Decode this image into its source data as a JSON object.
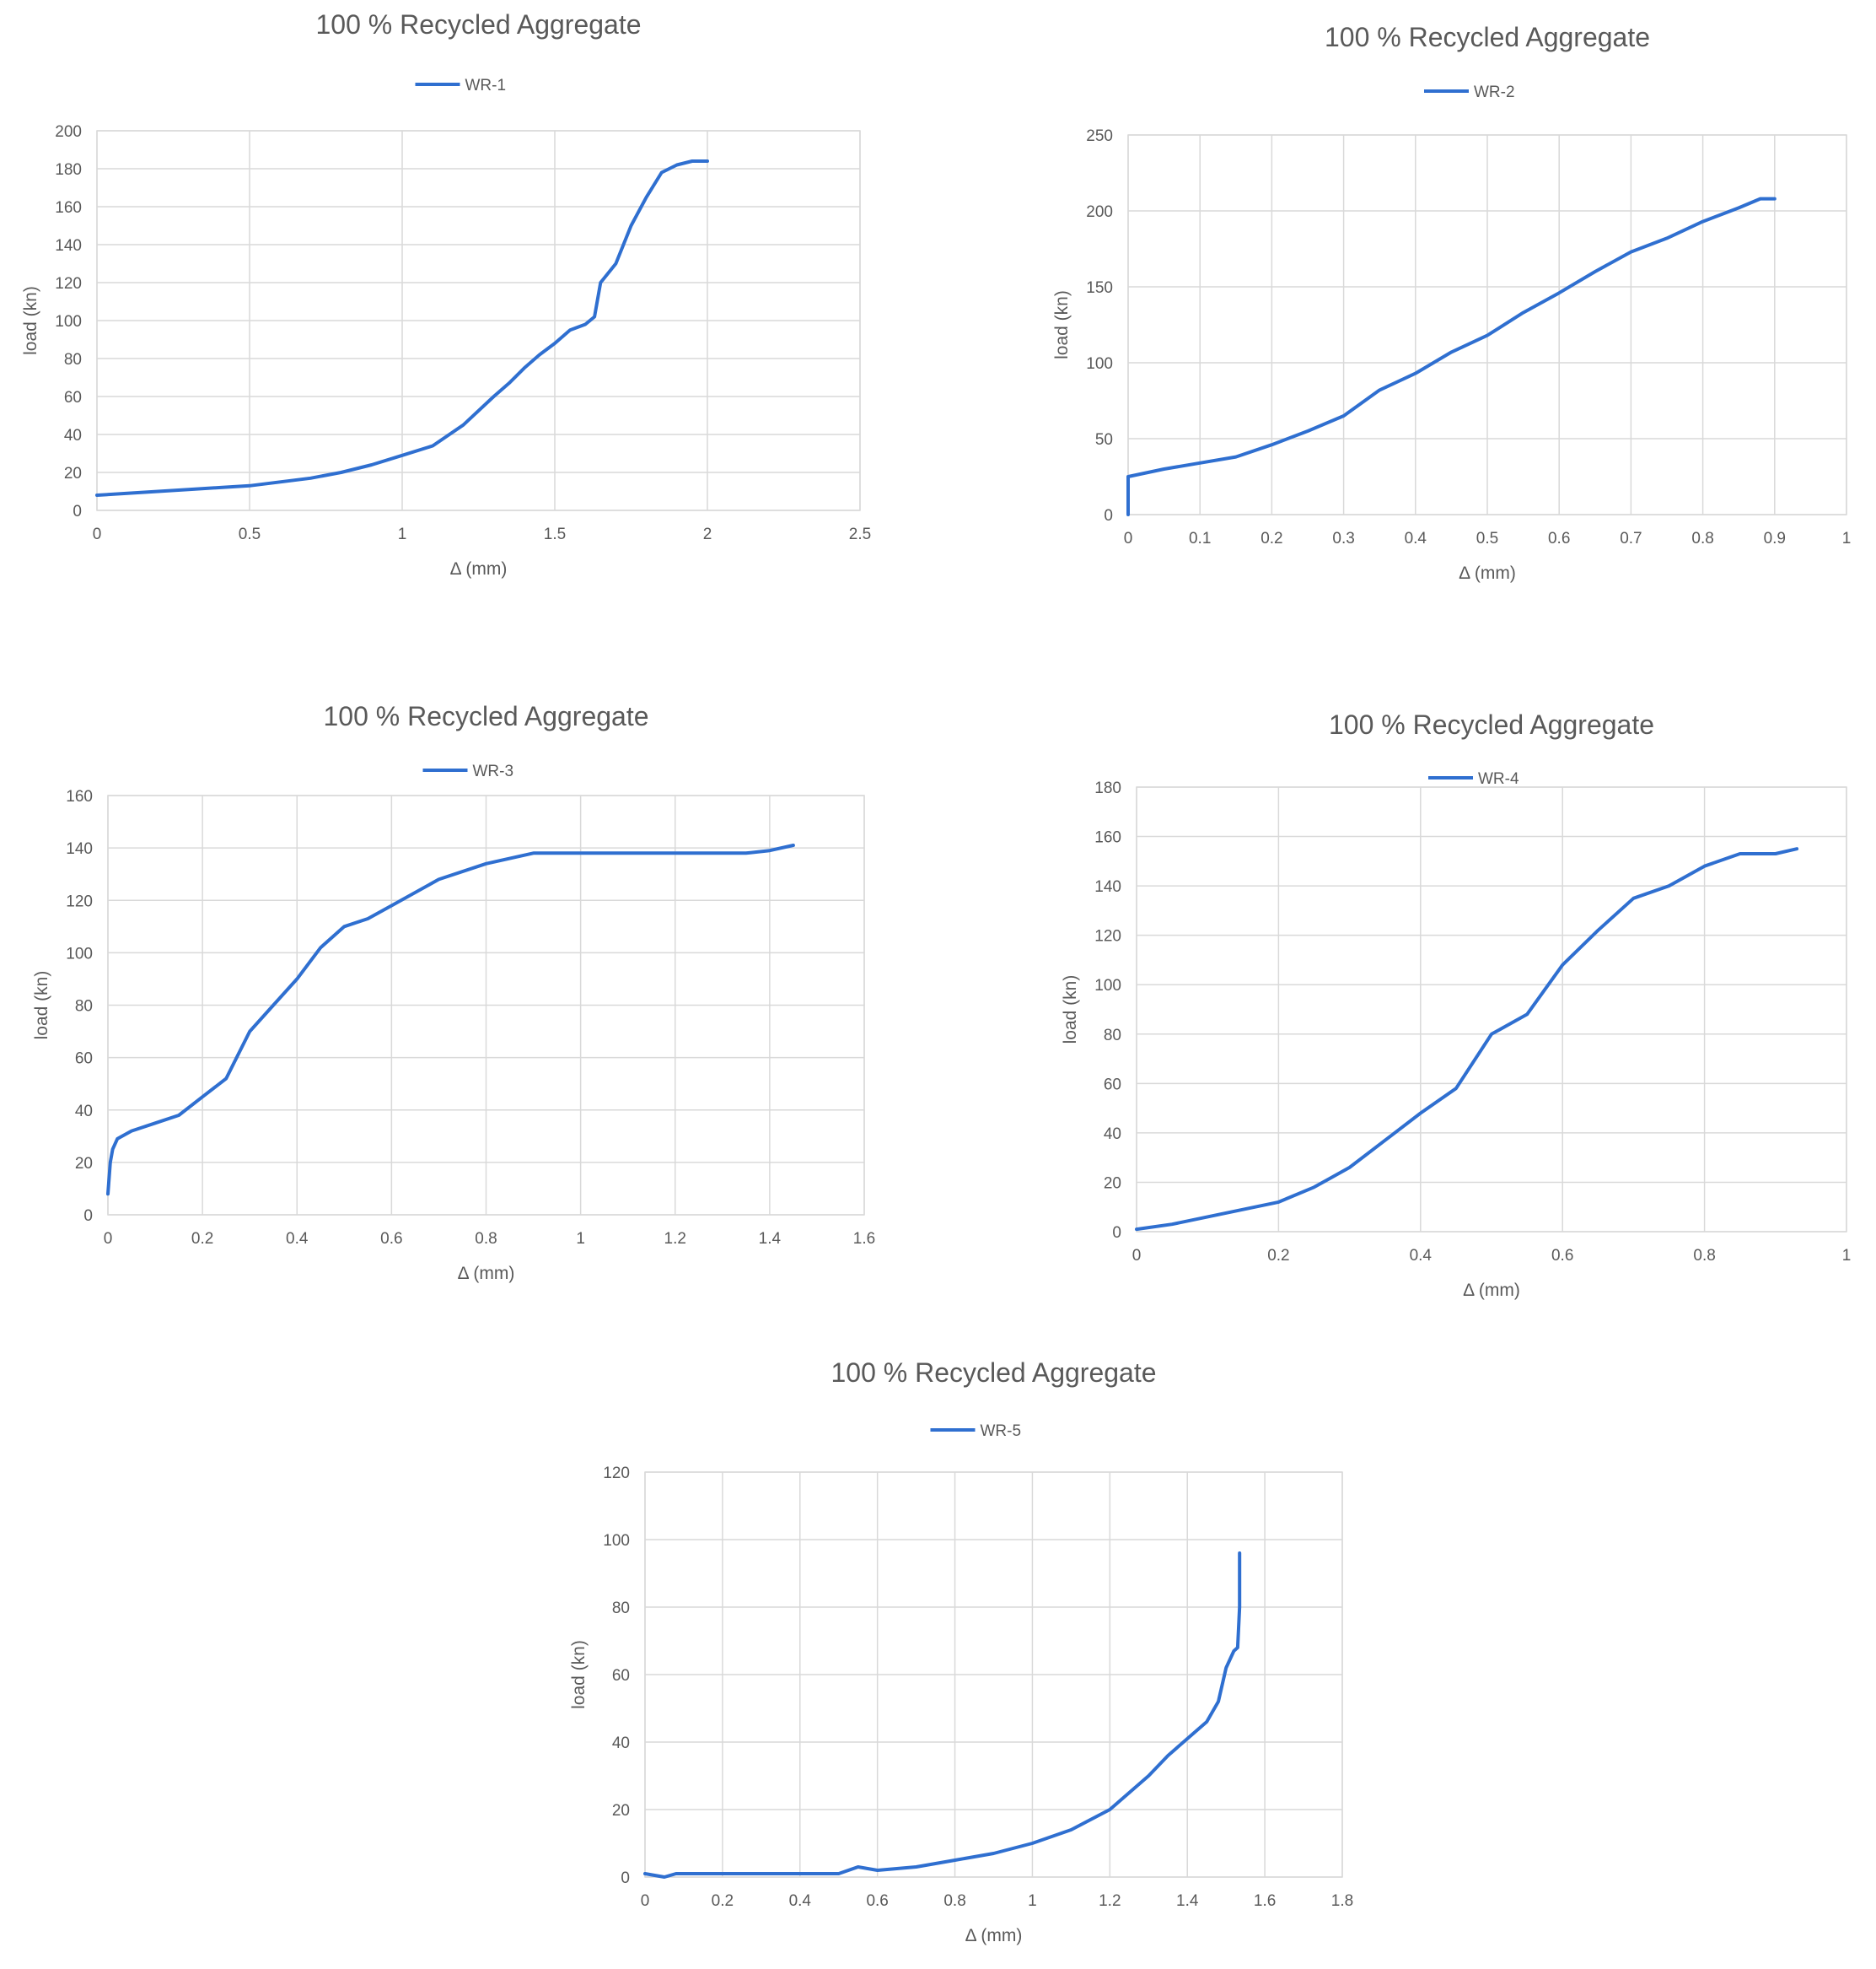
{
  "chart_data": [
    {
      "type": "line",
      "title": "100 % Recycled Aggregate",
      "legend": "top",
      "grid": true,
      "xlabel": "Δ (mm)",
      "ylabel": "load (kn)",
      "xlim": [
        0,
        2.5
      ],
      "ylim": [
        0,
        200
      ],
      "xticks": [
        0,
        0.5,
        1,
        1.5,
        2,
        2.5
      ],
      "xtick_labels": [
        "0",
        "0.5",
        "1",
        "1.5",
        "2",
        "2.5"
      ],
      "yticks": [
        0,
        20,
        40,
        60,
        80,
        100,
        120,
        140,
        160,
        180,
        200
      ],
      "ytick_labels": [
        "0",
        "20",
        "40",
        "60",
        "80",
        "100",
        "120",
        "140",
        "160",
        "180",
        "200"
      ],
      "series": [
        {
          "name": "WR-1",
          "color": "#2f6fd0",
          "x": [
            0,
            0.1,
            0.2,
            0.3,
            0.4,
            0.5,
            0.6,
            0.7,
            0.8,
            0.9,
            1.0,
            1.1,
            1.2,
            1.3,
            1.35,
            1.4,
            1.45,
            1.5,
            1.55,
            1.6,
            1.63,
            1.65,
            1.7,
            1.75,
            1.8,
            1.85,
            1.9,
            1.95,
            2.0
          ],
          "y": [
            8,
            9,
            10,
            11,
            12,
            13,
            15,
            17,
            20,
            24,
            29,
            34,
            45,
            60,
            67,
            75,
            82,
            88,
            95,
            98,
            102,
            120,
            130,
            150,
            165,
            178,
            182,
            184,
            184
          ]
        }
      ]
    },
    {
      "type": "line",
      "title": "100 % Recycled Aggregate",
      "legend": "top",
      "grid": true,
      "xlabel": "Δ (mm)",
      "ylabel": "load (kn)",
      "xlim": [
        0,
        1
      ],
      "ylim": [
        0,
        250
      ],
      "xticks": [
        0,
        0.1,
        0.2,
        0.3,
        0.4,
        0.5,
        0.6,
        0.7,
        0.8,
        0.9,
        1
      ],
      "xtick_labels": [
        "0",
        "0.1",
        "0.2",
        "0.3",
        "0.4",
        "0.5",
        "0.6",
        "0.7",
        "0.8",
        "0.9",
        "1"
      ],
      "yticks": [
        0,
        50,
        100,
        150,
        200,
        250
      ],
      "ytick_labels": [
        "0",
        "50",
        "100",
        "150",
        "200",
        "250"
      ],
      "series": [
        {
          "name": "WR-2",
          "color": "#2f6fd0",
          "x": [
            0,
            0,
            0.05,
            0.1,
            0.15,
            0.2,
            0.25,
            0.3,
            0.35,
            0.4,
            0.45,
            0.5,
            0.55,
            0.6,
            0.65,
            0.7,
            0.75,
            0.8,
            0.85,
            0.88,
            0.9
          ],
          "y": [
            0,
            25,
            30,
            34,
            38,
            46,
            55,
            65,
            82,
            93,
            107,
            118,
            133,
            146,
            160,
            173,
            182,
            193,
            202,
            208,
            208
          ]
        }
      ]
    },
    {
      "type": "line",
      "title": "100 % Recycled Aggregate",
      "legend": "top",
      "grid": true,
      "xlabel": "Δ (mm)",
      "ylabel": "load (kn)",
      "xlim": [
        0,
        1.6
      ],
      "ylim": [
        0,
        160
      ],
      "xticks": [
        0,
        0.2,
        0.4,
        0.6,
        0.8,
        1,
        1.2,
        1.4,
        1.6
      ],
      "xtick_labels": [
        "0",
        "0.2",
        "0.4",
        "0.6",
        "0.8",
        "1",
        "1.2",
        "1.4",
        "1.6"
      ],
      "yticks": [
        0,
        20,
        40,
        60,
        80,
        100,
        120,
        140,
        160
      ],
      "ytick_labels": [
        "0",
        "20",
        "40",
        "60",
        "80",
        "100",
        "120",
        "140",
        "160"
      ],
      "series": [
        {
          "name": "WR-3",
          "color": "#2f6fd0",
          "x": [
            0,
            0.005,
            0.01,
            0.02,
            0.05,
            0.1,
            0.15,
            0.2,
            0.25,
            0.3,
            0.35,
            0.4,
            0.45,
            0.5,
            0.55,
            0.6,
            0.7,
            0.8,
            0.9,
            1.0,
            1.2,
            1.3,
            1.35,
            1.4,
            1.45
          ],
          "y": [
            8,
            20,
            25,
            29,
            32,
            35,
            38,
            45,
            52,
            70,
            80,
            90,
            102,
            110,
            113,
            118,
            128,
            134,
            138,
            138,
            138,
            138,
            138,
            139,
            141
          ]
        }
      ]
    },
    {
      "type": "line",
      "title": "100 % Recycled Aggregate",
      "legend": "top",
      "grid": true,
      "xlabel": "Δ (mm)",
      "ylabel": "load (kn)",
      "xlim": [
        0,
        1
      ],
      "ylim": [
        0,
        180
      ],
      "xticks": [
        0,
        0.2,
        0.4,
        0.6,
        0.8,
        1
      ],
      "xtick_labels": [
        "0",
        "0.2",
        "0.4",
        "0.6",
        "0.8",
        "1"
      ],
      "yticks": [
        0,
        20,
        40,
        60,
        80,
        100,
        120,
        140,
        160,
        180
      ],
      "ytick_labels": [
        "0",
        "20",
        "40",
        "60",
        "80",
        "100",
        "120",
        "140",
        "160",
        "180"
      ],
      "series": [
        {
          "name": "WR-4",
          "color": "#2f6fd0",
          "x": [
            0,
            0.05,
            0.1,
            0.15,
            0.2,
            0.25,
            0.3,
            0.35,
            0.4,
            0.45,
            0.5,
            0.55,
            0.6,
            0.65,
            0.7,
            0.75,
            0.8,
            0.85,
            0.9,
            0.93
          ],
          "y": [
            1,
            3,
            6,
            9,
            12,
            18,
            26,
            37,
            48,
            58,
            80,
            88,
            108,
            122,
            135,
            140,
            148,
            153,
            153,
            155
          ]
        }
      ]
    },
    {
      "type": "line",
      "title": "100 % Recycled Aggregate",
      "legend": "top",
      "grid": true,
      "xlabel": "Δ (mm)",
      "ylabel": "load (kn)",
      "xlim": [
        0,
        1.8
      ],
      "ylim": [
        0,
        120
      ],
      "xticks": [
        0,
        0.2,
        0.4,
        0.6,
        0.8,
        1,
        1.2,
        1.4,
        1.6,
        1.8
      ],
      "xtick_labels": [
        "0",
        "0.2",
        "0.4",
        "0.6",
        "0.8",
        "1",
        "1.2",
        "1.4",
        "1.6",
        "1.8"
      ],
      "yticks": [
        0,
        20,
        40,
        60,
        80,
        100,
        120
      ],
      "ytick_labels": [
        "0",
        "20",
        "40",
        "60",
        "80",
        "100",
        "120"
      ],
      "series": [
        {
          "name": "WR-5",
          "color": "#2f6fd0",
          "x": [
            0,
            0.05,
            0.08,
            0.1,
            0.3,
            0.5,
            0.55,
            0.6,
            0.7,
            0.8,
            0.9,
            1.0,
            1.1,
            1.2,
            1.3,
            1.35,
            1.4,
            1.45,
            1.48,
            1.5,
            1.52,
            1.53,
            1.535,
            1.535
          ],
          "y": [
            1,
            0,
            1,
            1,
            1,
            1,
            3,
            2,
            3,
            5,
            7,
            10,
            14,
            20,
            30,
            36,
            41,
            46,
            52,
            62,
            67,
            68,
            80,
            96
          ]
        }
      ]
    }
  ]
}
